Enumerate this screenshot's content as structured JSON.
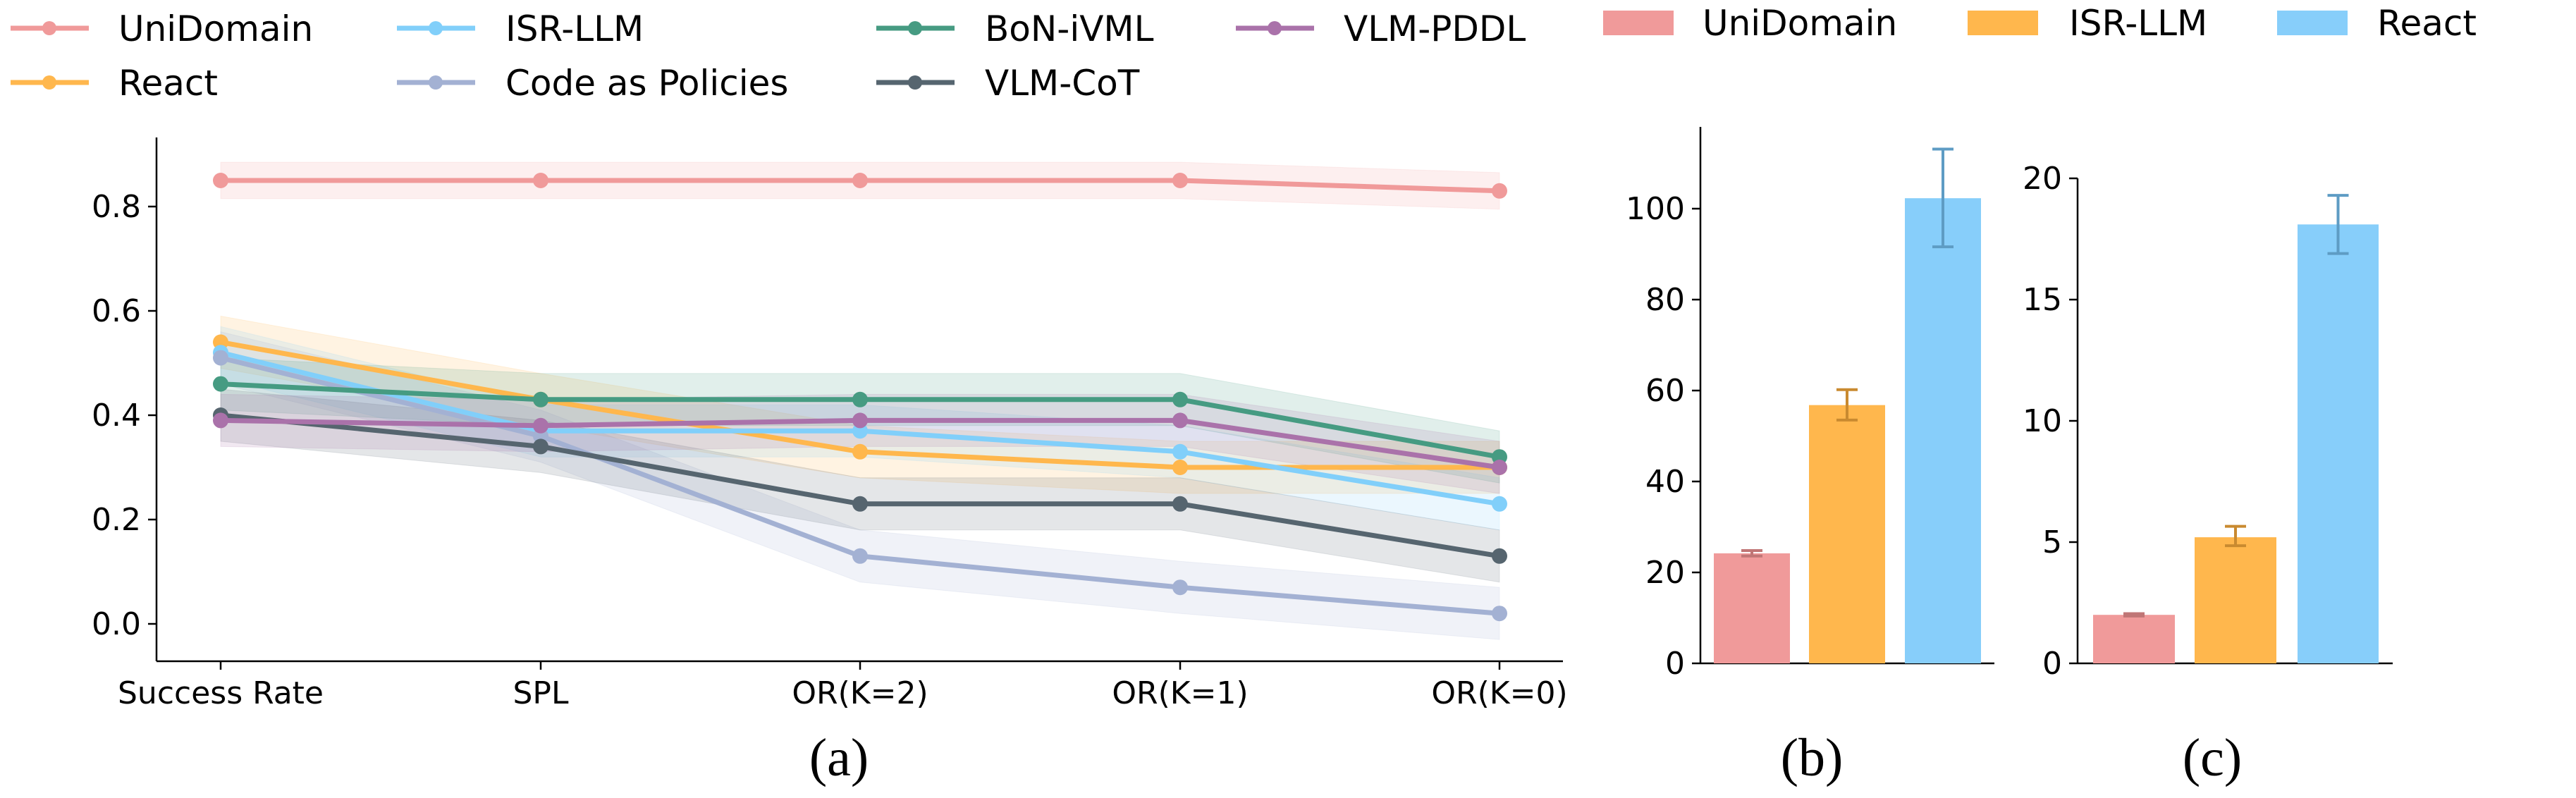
{
  "chart_data": [
    {
      "type": "line",
      "panel_label": "(a)",
      "categories": [
        "Success Rate",
        "SPL",
        "OR(K=2)",
        "OR(K=1)",
        "OR(K=0)"
      ],
      "ylim": [
        -0.07,
        0.94
      ],
      "yticks": [
        "0.0",
        "0.2",
        "0.4",
        "0.6",
        "0.8"
      ],
      "grid": false,
      "legend_placement": "top",
      "series": [
        {
          "name": "UniDomain",
          "color": "#F09A9A",
          "values": [
            0.85,
            0.85,
            0.85,
            0.85,
            0.83
          ],
          "band": [
            0.035,
            0.035,
            0.035,
            0.035,
            0.035
          ]
        },
        {
          "name": "React",
          "color": "#FFB74D",
          "values": [
            0.54,
            0.43,
            0.33,
            0.3,
            0.3
          ],
          "band": [
            0.05,
            0.05,
            0.05,
            0.05,
            0.05
          ]
        },
        {
          "name": "ISR-LLM",
          "color": "#81CFFA",
          "values": [
            0.52,
            0.37,
            0.37,
            0.33,
            0.23
          ],
          "band": [
            0.05,
            0.05,
            0.05,
            0.05,
            0.05
          ]
        },
        {
          "name": "Code as Policies",
          "color": "#A3B1D3",
          "values": [
            0.51,
            0.36,
            0.13,
            0.07,
            0.02
          ],
          "band": [
            0.05,
            0.05,
            0.05,
            0.05,
            0.05
          ]
        },
        {
          "name": "BoN-iVML",
          "color": "#469B82",
          "values": [
            0.46,
            0.43,
            0.43,
            0.43,
            0.32
          ],
          "band": [
            0.05,
            0.05,
            0.05,
            0.05,
            0.05
          ]
        },
        {
          "name": "VLM-CoT",
          "color": "#56656F",
          "values": [
            0.4,
            0.34,
            0.23,
            0.23,
            0.13
          ],
          "band": [
            0.05,
            0.05,
            0.05,
            0.05,
            0.05
          ]
        },
        {
          "name": "VLM-PDDL",
          "color": "#AA72AA",
          "values": [
            0.39,
            0.38,
            0.39,
            0.39,
            0.3
          ],
          "band": [
            0.05,
            0.05,
            0.05,
            0.05,
            0.05
          ]
        }
      ]
    },
    {
      "type": "bar",
      "panel_label": "(b)",
      "categories": [
        "UniDomain",
        "ISR-LLM",
        "React"
      ],
      "values": [
        24.2,
        56.8,
        102.3
      ],
      "errors": [
        [
          23.6,
          24.8
        ],
        [
          53.5,
          60.2
        ],
        [
          91.6,
          113.1
        ]
      ],
      "ylim": [
        0,
        118
      ],
      "yticks": [
        "0",
        "20",
        "40",
        "60",
        "80",
        "100"
      ],
      "colors": [
        "#F09A9A",
        "#FFB74D",
        "#87CEFA"
      ]
    },
    {
      "type": "bar",
      "panel_label": "(c)",
      "categories": [
        "UniDomain",
        "ISR-LLM",
        "React"
      ],
      "values": [
        2.0,
        5.2,
        18.1
      ],
      "errors": [
        [
          1.95,
          2.05
        ],
        [
          4.85,
          5.65
        ],
        [
          16.9,
          19.3
        ]
      ],
      "ylim": [
        0,
        20
      ],
      "yticks": [
        "0",
        "5",
        "10",
        "15",
        "20"
      ],
      "colors": [
        "#F09A9A",
        "#FFB74D",
        "#87CEFA"
      ]
    }
  ],
  "bar_legend": [
    {
      "name": "UniDomain",
      "color": "#F09A9A"
    },
    {
      "name": "ISR-LLM",
      "color": "#FFB74D"
    },
    {
      "name": "React",
      "color": "#87CEFA"
    }
  ]
}
